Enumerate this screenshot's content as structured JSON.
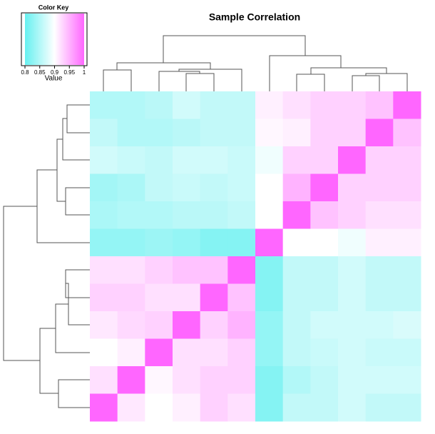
{
  "chart_data": {
    "type": "heatmap",
    "title": "Sample Correlation",
    "zlim": [
      0.8,
      1
    ],
    "colors": [
      "#66f0f0",
      "#ffffff",
      "#ff66ff"
    ],
    "color_key": {
      "title": "Color Key",
      "label": "Value",
      "ticks": [
        0.8,
        0.85,
        0.9,
        0.95,
        1
      ]
    },
    "values": [
      [
        0.85,
        0.85,
        0.855,
        0.87,
        0.86,
        0.86,
        0.91,
        0.92,
        0.93,
        0.93,
        0.94,
        1
      ],
      [
        0.86,
        0.85,
        0.85,
        0.855,
        0.86,
        0.86,
        0.905,
        0.91,
        0.93,
        0.93,
        1,
        0.94
      ],
      [
        0.87,
        0.865,
        0.86,
        0.87,
        0.87,
        0.865,
        0.89,
        0.93,
        0.93,
        1,
        0.93,
        0.93
      ],
      [
        0.84,
        0.845,
        0.86,
        0.865,
        0.86,
        0.865,
        0.9,
        0.95,
        1,
        0.93,
        0.93,
        0.93
      ],
      [
        0.845,
        0.85,
        0.85,
        0.855,
        0.855,
        0.86,
        0.9,
        1,
        0.94,
        0.93,
        0.92,
        0.92
      ],
      [
        0.83,
        0.83,
        0.835,
        0.83,
        0.82,
        0.82,
        1,
        0.9,
        0.9,
        0.89,
        0.91,
        0.91
      ],
      [
        0.92,
        0.92,
        0.93,
        0.94,
        0.94,
        1,
        0.82,
        0.86,
        0.86,
        0.87,
        0.86,
        0.86
      ],
      [
        0.93,
        0.93,
        0.92,
        0.92,
        1,
        0.94,
        0.82,
        0.86,
        0.86,
        0.87,
        0.86,
        0.86
      ],
      [
        0.915,
        0.925,
        0.93,
        1,
        0.93,
        0.95,
        0.83,
        0.86,
        0.87,
        0.87,
        0.87,
        0.875
      ],
      [
        0.9,
        0.91,
        1,
        0.92,
        0.92,
        0.93,
        0.83,
        0.86,
        0.865,
        0.87,
        0.865,
        0.865
      ],
      [
        0.92,
        1,
        0.905,
        0.92,
        0.93,
        0.93,
        0.82,
        0.85,
        0.86,
        0.87,
        0.87,
        0.87
      ],
      [
        1,
        0.915,
        0.9,
        0.91,
        0.93,
        0.92,
        0.82,
        0.86,
        0.86,
        0.87,
        0.86,
        0.86
      ]
    ]
  }
}
